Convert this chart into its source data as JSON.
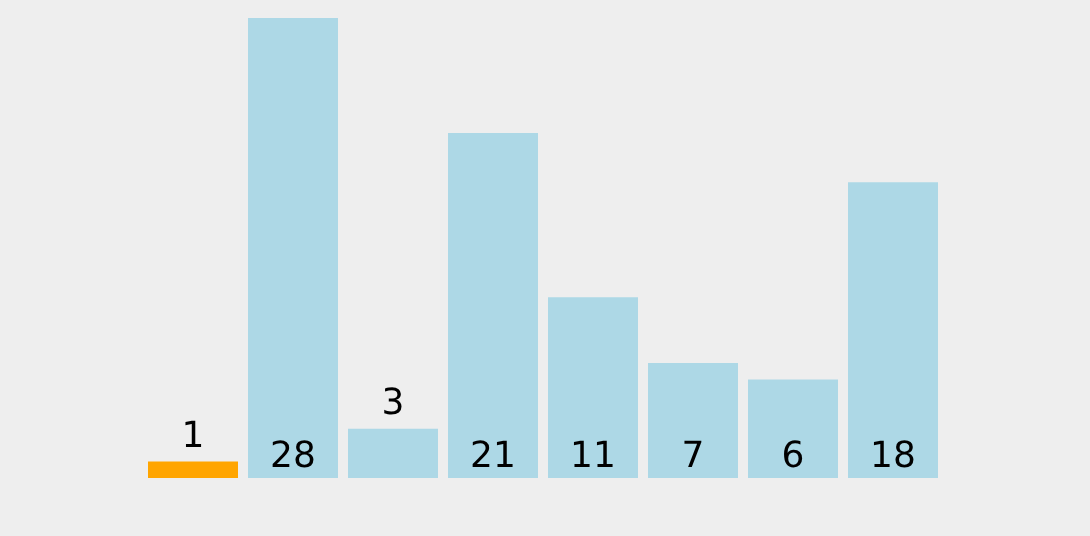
{
  "chart_data": {
    "type": "bar",
    "categories": [
      null,
      null,
      null,
      null,
      null,
      null,
      null,
      null
    ],
    "values": [
      1,
      28,
      3,
      21,
      11,
      7,
      6,
      18
    ],
    "colors": [
      "#ffa500",
      "#add8e6",
      "#add8e6",
      "#add8e6",
      "#add8e6",
      "#add8e6",
      "#add8e6",
      "#add8e6"
    ],
    "data_labels": true
  }
}
